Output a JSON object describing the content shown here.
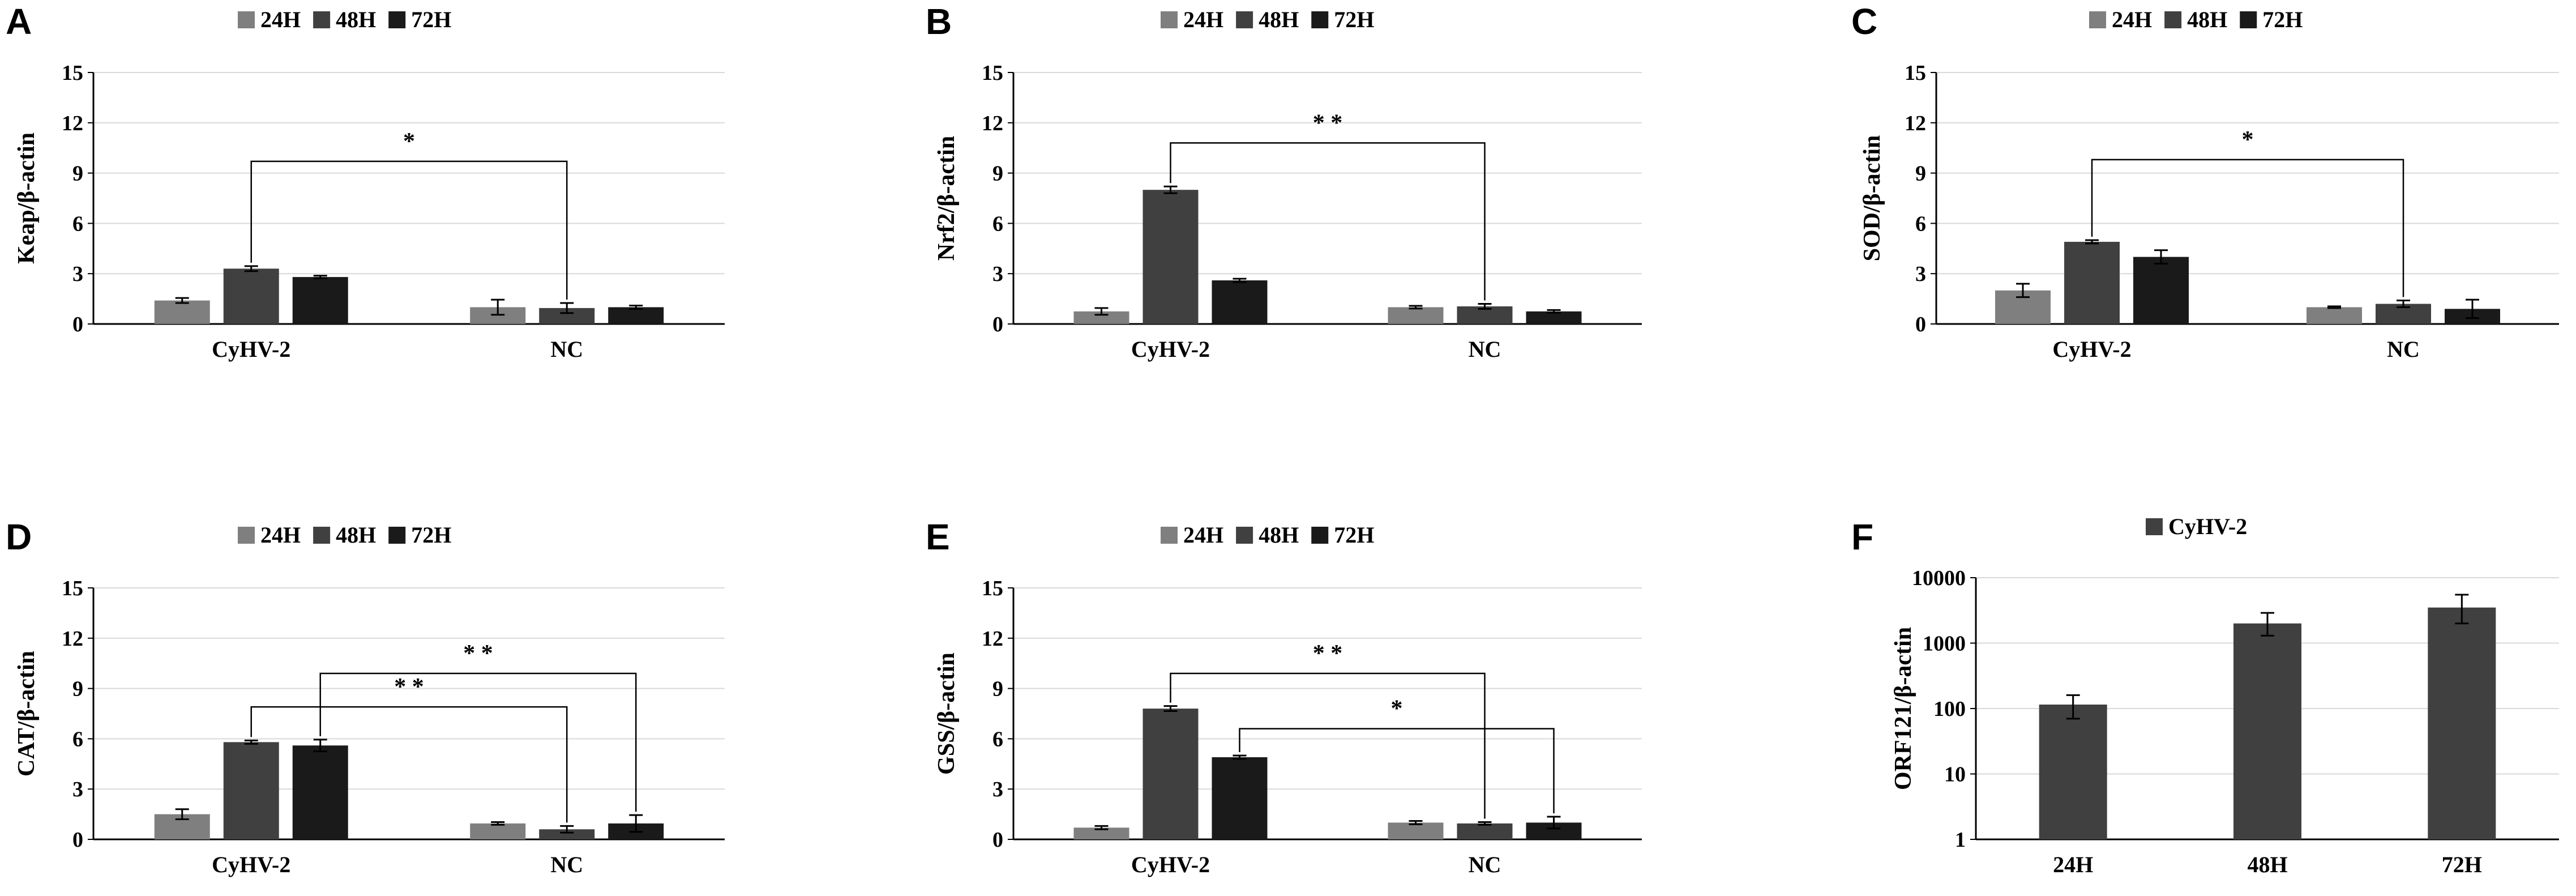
{
  "chart_data": [
    {
      "panel": "A",
      "type": "bar",
      "scale": "linear",
      "ylabel": "Keap/β-actin",
      "ylim": [
        0,
        15
      ],
      "yticks": [
        "0",
        "3",
        "6",
        "9",
        "12",
        "15"
      ],
      "categories": [
        "CyHV-2",
        "NC"
      ],
      "series": [
        {
          "name": "24H",
          "values": [
            1.4,
            1.0
          ],
          "errors": [
            0.15,
            0.45
          ]
        },
        {
          "name": "48H",
          "values": [
            3.3,
            0.95
          ],
          "errors": [
            0.15,
            0.3
          ]
        },
        {
          "name": "72H",
          "values": [
            2.8,
            1.0
          ],
          "errors": [
            0.08,
            0.1
          ]
        }
      ],
      "significance": [
        {
          "label": "*",
          "from": [
            0,
            1
          ],
          "to": [
            1,
            1
          ],
          "y": 9.7
        }
      ]
    },
    {
      "panel": "B",
      "type": "bar",
      "scale": "linear",
      "ylabel": "Nrf2/β-actin",
      "ylim": [
        0,
        15
      ],
      "yticks": [
        "0",
        "3",
        "6",
        "9",
        "12",
        "15"
      ],
      "categories": [
        "CyHV-2",
        "NC"
      ],
      "series": [
        {
          "name": "24H",
          "values": [
            0.75,
            1.0
          ],
          "errors": [
            0.2,
            0.08
          ]
        },
        {
          "name": "48H",
          "values": [
            8.0,
            1.05
          ],
          "errors": [
            0.2,
            0.15
          ]
        },
        {
          "name": "72H",
          "values": [
            2.6,
            0.75
          ],
          "errors": [
            0.1,
            0.08
          ]
        }
      ],
      "significance": [
        {
          "label": "* *",
          "from": [
            0,
            1
          ],
          "to": [
            1,
            1
          ],
          "y": 10.8
        }
      ]
    },
    {
      "panel": "C",
      "type": "bar",
      "scale": "linear",
      "ylabel": "SOD/β-actin",
      "ylim": [
        0,
        15
      ],
      "yticks": [
        "0",
        "3",
        "6",
        "9",
        "12",
        "15"
      ],
      "categories": [
        "CyHV-2",
        "NC"
      ],
      "series": [
        {
          "name": "24H",
          "values": [
            2.0,
            1.0
          ],
          "errors": [
            0.4,
            0.05
          ]
        },
        {
          "name": "48H",
          "values": [
            4.9,
            1.2
          ],
          "errors": [
            0.1,
            0.2
          ]
        },
        {
          "name": "72H",
          "values": [
            4.0,
            0.9
          ],
          "errors": [
            0.4,
            0.55
          ]
        }
      ],
      "significance": [
        {
          "label": "*",
          "from": [
            0,
            1
          ],
          "to": [
            1,
            1
          ],
          "y": 9.8
        }
      ]
    },
    {
      "panel": "D",
      "type": "bar",
      "scale": "linear",
      "ylabel": "CAT/β-actin",
      "ylim": [
        0,
        15
      ],
      "yticks": [
        "0",
        "3",
        "6",
        "9",
        "12",
        "15"
      ],
      "categories": [
        "CyHV-2",
        "NC"
      ],
      "series": [
        {
          "name": "24H",
          "values": [
            1.5,
            0.95
          ],
          "errors": [
            0.3,
            0.08
          ]
        },
        {
          "name": "48H",
          "values": [
            5.8,
            0.6
          ],
          "errors": [
            0.1,
            0.2
          ]
        },
        {
          "name": "72H",
          "values": [
            5.6,
            0.95
          ],
          "errors": [
            0.35,
            0.5
          ]
        }
      ],
      "significance": [
        {
          "label": "* *",
          "from": [
            0,
            1
          ],
          "to": [
            1,
            1
          ],
          "y": 7.9
        },
        {
          "label": "* *",
          "from": [
            0,
            2
          ],
          "to": [
            1,
            2
          ],
          "y": 9.9
        }
      ]
    },
    {
      "panel": "E",
      "type": "bar",
      "scale": "linear",
      "ylabel": "GSS/β-actin",
      "ylim": [
        0,
        15
      ],
      "yticks": [
        "0",
        "3",
        "6",
        "9",
        "12",
        "15"
      ],
      "categories": [
        "CyHV-2",
        "NC"
      ],
      "series": [
        {
          "name": "24H",
          "values": [
            0.7,
            1.0
          ],
          "errors": [
            0.1,
            0.1
          ]
        },
        {
          "name": "48H",
          "values": [
            7.8,
            0.95
          ],
          "errors": [
            0.15,
            0.08
          ]
        },
        {
          "name": "72H",
          "values": [
            4.9,
            1.0
          ],
          "errors": [
            0.1,
            0.35
          ]
        }
      ],
      "significance": [
        {
          "label": "* *",
          "from": [
            0,
            1
          ],
          "to": [
            1,
            1
          ],
          "y": 9.9
        },
        {
          "label": "*",
          "from": [
            0,
            2
          ],
          "to": [
            1,
            2
          ],
          "y": 6.6
        }
      ]
    },
    {
      "panel": "F",
      "type": "bar",
      "scale": "log",
      "ylabel": "ORF121/β-actin",
      "ylim": [
        1,
        10000
      ],
      "yticks": [
        "1",
        "10",
        "100",
        "1000",
        "10000"
      ],
      "categories": [
        "24H",
        "48H",
        "72H"
      ],
      "series": [
        {
          "name": "CyHV-2",
          "values": [
            115,
            2000,
            3500
          ],
          "errors_low": [
            45,
            700,
            1500
          ],
          "errors_high": [
            45,
            900,
            2000
          ]
        }
      ],
      "significance": []
    }
  ],
  "colors": {
    "24H": "#7f7f7f",
    "48H": "#404040",
    "72H": "#1a1a1a",
    "CyHV-2": "#404040",
    "grid": "#d9d9d9",
    "axis": "#000000"
  }
}
